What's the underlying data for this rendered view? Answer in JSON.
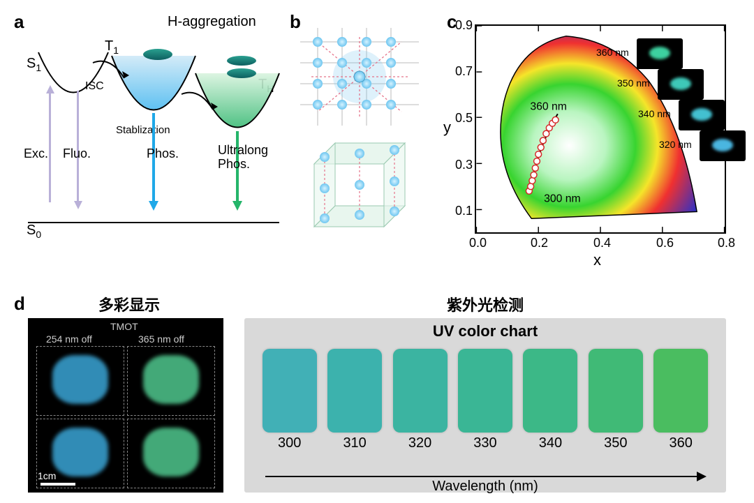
{
  "panel_labels": {
    "a": "a",
    "b": "b",
    "c": "c",
    "d": "d"
  },
  "panel_a": {
    "title": "H-aggregation",
    "states": {
      "S0": "S",
      "S0_sub": "0",
      "S1": "S",
      "S1_sub": "1",
      "T1": "T",
      "T1_sub": "1",
      "TH": "T",
      "TH_sub": "H"
    },
    "processes": {
      "exc": "Exc.",
      "fluo": "Fluo.",
      "isc": "ISC",
      "stab": "Stablization",
      "phos": "Phos.",
      "ultralong": "Ultralong",
      "ultralong2": "Phos."
    },
    "colors": {
      "exc_arrow": "#b9b0d8",
      "fluo_arrow": "#b9b0d8",
      "phos_arrow": "#1fa8e8",
      "ultra_arrow": "#25b56a",
      "t1_grad_top": "#cfe9f7",
      "t1_grad_bot": "#4dbaf0",
      "th_grad_top": "#d9f4df",
      "th_grad_bot": "#3dbb77",
      "molecule": "#1f7a7a"
    }
  },
  "panel_b": {
    "grid": {
      "cols": 5,
      "rows": 5
    },
    "node_color": "#8fd4f2",
    "bg_tint": "#eaf7f0"
  },
  "panel_c": {
    "type": "cie-chromaticity",
    "xlim": [
      0.0,
      0.8
    ],
    "ylim": [
      0.0,
      0.9
    ],
    "xticks": [
      0.0,
      0.2,
      0.4,
      0.6,
      0.8
    ],
    "yticks": [
      0.1,
      0.3,
      0.5,
      0.7,
      0.9
    ],
    "xlabel": "x",
    "ylabel": "y",
    "tick_fontsize": 18,
    "label_fontsize": 24,
    "locus_end_labels": {
      "low": "300 nm",
      "high": "360 nm"
    },
    "data_points": [
      {
        "x": 0.17,
        "y": 0.18
      },
      {
        "x": 0.175,
        "y": 0.2
      },
      {
        "x": 0.18,
        "y": 0.225
      },
      {
        "x": 0.185,
        "y": 0.25
      },
      {
        "x": 0.19,
        "y": 0.28
      },
      {
        "x": 0.195,
        "y": 0.31
      },
      {
        "x": 0.2,
        "y": 0.34
      },
      {
        "x": 0.208,
        "y": 0.37
      },
      {
        "x": 0.215,
        "y": 0.4
      },
      {
        "x": 0.225,
        "y": 0.43
      },
      {
        "x": 0.235,
        "y": 0.455
      },
      {
        "x": 0.245,
        "y": 0.475
      },
      {
        "x": 0.255,
        "y": 0.49
      }
    ],
    "point_marker": {
      "fill": "#ffffff",
      "stroke": "#d62728",
      "size": 9
    },
    "insets": [
      {
        "label": "360 nm",
        "glow": "#3dd1a0"
      },
      {
        "label": "350 nm",
        "glow": "#3ec8b8"
      },
      {
        "label": "340 nm",
        "glow": "#43c0d0"
      },
      {
        "label": "320 nm",
        "glow": "#4ab6e0"
      }
    ]
  },
  "panel_d": {
    "left_title": "多彩显示",
    "right_title": "紫外光检测",
    "tmot_label": "TMOT",
    "tmot_col_labels": [
      "254 nm off",
      "365 nm off"
    ],
    "tmot_quad_colors": [
      "#3aa5d6",
      "#4fc78e",
      "#3aa5d6",
      "#4fc78e"
    ],
    "scalebar": "1cm",
    "uv_title": "UV color chart",
    "wavelength_label": "Wavelength (nm)",
    "swatches": [
      {
        "label": "300",
        "color": "#41b0b6"
      },
      {
        "label": "310",
        "color": "#3cb2ad"
      },
      {
        "label": "320",
        "color": "#3bb4a1"
      },
      {
        "label": "330",
        "color": "#3ab695"
      },
      {
        "label": "340",
        "color": "#3cb887"
      },
      {
        "label": "350",
        "color": "#40ba76"
      },
      {
        "label": "360",
        "color": "#4abd60"
      }
    ]
  }
}
